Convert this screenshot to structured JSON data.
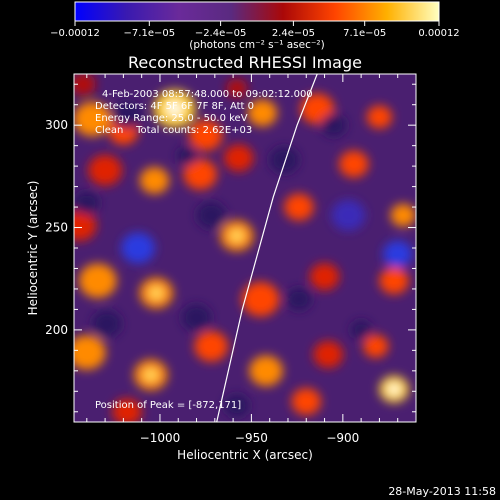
{
  "chart_data": {
    "type": "heatmap",
    "title": "Reconstructed RHESSI Image",
    "xlabel": "Heliocentric X (arcsec)",
    "ylabel": "Heliocentric Y (arcsec)",
    "x_ticks": [
      "−1000",
      "−950",
      "−900"
    ],
    "x_tick_values": [
      -1000,
      -950,
      -900
    ],
    "y_ticks": [
      "300",
      "250",
      "200"
    ],
    "y_tick_values": [
      300,
      250,
      200
    ],
    "xlim": [
      -1047,
      -860
    ],
    "ylim": [
      155,
      325
    ],
    "colorbar": {
      "tick_labels": [
        "−0.00012",
        "−7.1e−05",
        "−2.4e−05",
        "2.4e−05",
        "7.1e−05",
        "0.00012"
      ],
      "tick_values": [
        -0.00012,
        -7.1e-05,
        -2.4e-05,
        2.4e-05,
        7.1e-05,
        0.00012
      ],
      "range": [
        -0.00012,
        0.00012
      ],
      "unit_label": "(photons cm⁻² s⁻¹ asec⁻²)",
      "colors": [
        "#0000ff",
        "#3a1ab0",
        "#6a2a9a",
        "#5a2a80",
        "#aa0808",
        "#ff4400",
        "#ffb000",
        "#ffffc0"
      ]
    },
    "annotations": [
      "4-Feb-2003 08:57:48.000 to 09:02:12.000",
      "Detectors: 4F 5F 6F 7F 8F, Att 0",
      "Energy Range: 25.0 - 50.0 keV",
      "Clean    Total counts: 2.62E+03"
    ],
    "peak_text": "Position of Peak = [-872,171]",
    "peak": [
      -872,
      171
    ],
    "limb_line": [
      [
        -969,
        155
      ],
      [
        -955,
        210
      ],
      [
        -938,
        265
      ],
      [
        -925,
        300
      ],
      [
        -914,
        325
      ]
    ],
    "blobs": [
      {
        "x": -1037,
        "y": 303,
        "v": 0.75,
        "r": 9
      },
      {
        "x": -1020,
        "y": 297,
        "v": 0.6,
        "r": 7
      },
      {
        "x": -992,
        "y": 308,
        "v": 0.95,
        "r": 10
      },
      {
        "x": -975,
        "y": 295,
        "v": 0.65,
        "r": 8
      },
      {
        "x": -944,
        "y": 306,
        "v": 0.7,
        "r": 7
      },
      {
        "x": -914,
        "y": 308,
        "v": 0.55,
        "r": 8
      },
      {
        "x": -880,
        "y": 304,
        "v": 0.6,
        "r": 6
      },
      {
        "x": -1030,
        "y": 278,
        "v": 0.45,
        "r": 8
      },
      {
        "x": -1003,
        "y": 273,
        "v": 0.7,
        "r": 7
      },
      {
        "x": -978,
        "y": 276,
        "v": 0.6,
        "r": 8
      },
      {
        "x": -957,
        "y": 284,
        "v": 0.5,
        "r": 7
      },
      {
        "x": -894,
        "y": 281,
        "v": 0.55,
        "r": 7
      },
      {
        "x": -1044,
        "y": 251,
        "v": 0.5,
        "r": 8
      },
      {
        "x": -958,
        "y": 246,
        "v": 0.85,
        "r": 8
      },
      {
        "x": -924,
        "y": 260,
        "v": 0.6,
        "r": 7
      },
      {
        "x": -867,
        "y": 256,
        "v": 0.7,
        "r": 6
      },
      {
        "x": -1034,
        "y": 224,
        "v": 0.75,
        "r": 9
      },
      {
        "x": -1002,
        "y": 218,
        "v": 0.8,
        "r": 8
      },
      {
        "x": -945,
        "y": 215,
        "v": 0.65,
        "r": 9
      },
      {
        "x": -910,
        "y": 226,
        "v": 0.5,
        "r": 7
      },
      {
        "x": -872,
        "y": 224,
        "v": 0.55,
        "r": 7
      },
      {
        "x": -1040,
        "y": 189,
        "v": 0.7,
        "r": 9
      },
      {
        "x": -1005,
        "y": 178,
        "v": 0.8,
        "r": 8
      },
      {
        "x": -972,
        "y": 192,
        "v": 0.6,
        "r": 8
      },
      {
        "x": -942,
        "y": 180,
        "v": 0.75,
        "r": 8
      },
      {
        "x": -908,
        "y": 188,
        "v": 0.45,
        "r": 7
      },
      {
        "x": -882,
        "y": 192,
        "v": 0.6,
        "r": 6
      },
      {
        "x": -872,
        "y": 171,
        "v": 1.0,
        "r": 7
      },
      {
        "x": -920,
        "y": 165,
        "v": 0.55,
        "r": 7
      },
      {
        "x": -1018,
        "y": 160,
        "v": 0.5,
        "r": 7
      },
      {
        "x": -1042,
        "y": 320,
        "v": 0.4,
        "r": 6
      },
      {
        "x": -958,
        "y": 318,
        "v": 0.35,
        "r": 5
      },
      {
        "x": -1012,
        "y": 240,
        "v": -0.9,
        "r": 8
      },
      {
        "x": -1018,
        "y": 305,
        "v": -0.55,
        "r": 7
      },
      {
        "x": -972,
        "y": 256,
        "v": -0.5,
        "r": 7
      },
      {
        "x": -932,
        "y": 283,
        "v": -0.55,
        "r": 7
      },
      {
        "x": -897,
        "y": 256,
        "v": -0.75,
        "r": 8
      },
      {
        "x": -870,
        "y": 237,
        "v": -0.9,
        "r": 7
      },
      {
        "x": -1029,
        "y": 203,
        "v": -0.5,
        "r": 7
      },
      {
        "x": -980,
        "y": 206,
        "v": -0.45,
        "r": 7
      },
      {
        "x": -924,
        "y": 215,
        "v": -0.55,
        "r": 6
      },
      {
        "x": -958,
        "y": 163,
        "v": -0.5,
        "r": 6
      },
      {
        "x": -1040,
        "y": 262,
        "v": -0.4,
        "r": 6
      },
      {
        "x": -905,
        "y": 300,
        "v": -0.45,
        "r": 6
      },
      {
        "x": -985,
        "y": 285,
        "v": -0.35,
        "r": 5
      },
      {
        "x": -890,
        "y": 200,
        "v": -0.4,
        "r": 5
      }
    ]
  },
  "footer": {
    "timestamp": "28-May-2013 11:58"
  }
}
